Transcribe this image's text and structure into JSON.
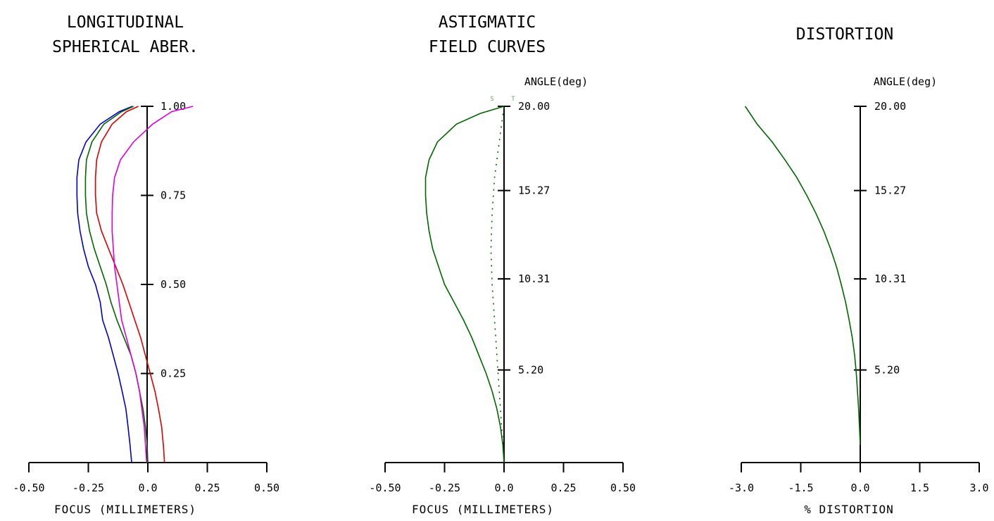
{
  "chart_data": [
    {
      "id": "lsa",
      "type": "line",
      "title": [
        "LONGITUDINAL",
        "SPHERICAL ABER."
      ],
      "xlabel": "FOCUS (MILLIMETERS)",
      "xlim": [
        -0.5,
        0.5
      ],
      "x_ticks": [
        "-0.50",
        "-0.25",
        "0.0",
        "0.25",
        "0.50"
      ],
      "ylim": [
        0,
        1.0
      ],
      "y_ticks": [
        {
          "v": 0.25,
          "label": "0.25"
        },
        {
          "v": 0.5,
          "label": "0.50"
        },
        {
          "v": 0.75,
          "label": "0.75"
        },
        {
          "v": 1.0,
          "label": "1.00"
        }
      ],
      "series": [
        {
          "color": "#0000cc",
          "points": [
            [
              -0.068,
              0
            ],
            [
              -0.075,
              0.05
            ],
            [
              -0.083,
              0.1
            ],
            [
              -0.092,
              0.15
            ],
            [
              -0.108,
              0.2
            ],
            [
              -0.125,
              0.25
            ],
            [
              -0.145,
              0.3
            ],
            [
              -0.165,
              0.35
            ],
            [
              -0.19,
              0.4
            ],
            [
              -0.2,
              0.45
            ],
            [
              -0.22,
              0.5
            ],
            [
              -0.25,
              0.55
            ],
            [
              -0.27,
              0.6
            ],
            [
              -0.285,
              0.65
            ],
            [
              -0.295,
              0.7
            ],
            [
              -0.298,
              0.75
            ],
            [
              -0.298,
              0.8
            ],
            [
              -0.29,
              0.85
            ],
            [
              -0.26,
              0.9
            ],
            [
              -0.2,
              0.95
            ],
            [
              -0.12,
              0.985
            ],
            [
              -0.065,
              1.0
            ]
          ]
        },
        {
          "color": "#006600",
          "points": [
            [
              0.0,
              0
            ],
            [
              -0.003,
              0.05
            ],
            [
              -0.01,
              0.1
            ],
            [
              -0.02,
              0.15
            ],
            [
              -0.035,
              0.2
            ],
            [
              -0.05,
              0.25
            ],
            [
              -0.07,
              0.3
            ],
            [
              -0.1,
              0.35
            ],
            [
              -0.13,
              0.4
            ],
            [
              -0.155,
              0.45
            ],
            [
              -0.175,
              0.5
            ],
            [
              -0.2,
              0.55
            ],
            [
              -0.225,
              0.6
            ],
            [
              -0.245,
              0.65
            ],
            [
              -0.258,
              0.7
            ],
            [
              -0.262,
              0.75
            ],
            [
              -0.262,
              0.8
            ],
            [
              -0.258,
              0.85
            ],
            [
              -0.235,
              0.9
            ],
            [
              -0.185,
              0.95
            ],
            [
              -0.11,
              0.985
            ],
            [
              -0.06,
              1.0
            ]
          ]
        },
        {
          "color": "#dd0000",
          "points": [
            [
              0.07,
              0
            ],
            [
              0.065,
              0.05
            ],
            [
              0.058,
              0.1
            ],
            [
              0.045,
              0.15
            ],
            [
              0.03,
              0.2
            ],
            [
              0.01,
              0.25
            ],
            [
              -0.01,
              0.3
            ],
            [
              -0.03,
              0.35
            ],
            [
              -0.055,
              0.4
            ],
            [
              -0.08,
              0.45
            ],
            [
              -0.105,
              0.5
            ],
            [
              -0.135,
              0.55
            ],
            [
              -0.165,
              0.6
            ],
            [
              -0.195,
              0.65
            ],
            [
              -0.215,
              0.7
            ],
            [
              -0.22,
              0.75
            ],
            [
              -0.22,
              0.8
            ],
            [
              -0.215,
              0.85
            ],
            [
              -0.195,
              0.9
            ],
            [
              -0.15,
              0.95
            ],
            [
              -0.09,
              0.985
            ],
            [
              -0.04,
              1.0
            ]
          ]
        },
        {
          "color": "#dd00dd",
          "points": [
            [
              -0.005,
              0
            ],
            [
              -0.01,
              0.05
            ],
            [
              -0.015,
              0.1
            ],
            [
              -0.025,
              0.15
            ],
            [
              -0.035,
              0.2
            ],
            [
              -0.05,
              0.25
            ],
            [
              -0.07,
              0.3
            ],
            [
              -0.09,
              0.35
            ],
            [
              -0.11,
              0.4
            ],
            [
              -0.12,
              0.45
            ],
            [
              -0.13,
              0.5
            ],
            [
              -0.14,
              0.55
            ],
            [
              -0.145,
              0.6
            ],
            [
              -0.15,
              0.65
            ],
            [
              -0.15,
              0.7
            ],
            [
              -0.148,
              0.75
            ],
            [
              -0.14,
              0.8
            ],
            [
              -0.115,
              0.85
            ],
            [
              -0.06,
              0.9
            ],
            [
              0.02,
              0.95
            ],
            [
              0.1,
              0.985
            ],
            [
              0.19,
              1.0
            ]
          ]
        }
      ]
    },
    {
      "id": "astig",
      "type": "line",
      "title": [
        "ASTIGMATIC",
        "FIELD CURVES"
      ],
      "xlabel": "FOCUS (MILLIMETERS)",
      "ylabel": "ANGLE(deg)",
      "xlim": [
        -0.5,
        0.5
      ],
      "x_ticks": [
        "-0.50",
        "-0.25",
        "0.0",
        "0.25",
        "0.50"
      ],
      "ylim": [
        0,
        20.0
      ],
      "y_ticks": [
        {
          "v": 5.2,
          "label": "5.20"
        },
        {
          "v": 10.31,
          "label": "10.31"
        },
        {
          "v": 15.27,
          "label": "15.27"
        },
        {
          "v": 20.0,
          "label": "20.00"
        }
      ],
      "legend": [
        "S",
        "T"
      ],
      "series": [
        {
          "name": "T",
          "color": "#006600",
          "dash": "",
          "points": [
            [
              0.0,
              0
            ],
            [
              -0.005,
              1
            ],
            [
              -0.015,
              2
            ],
            [
              -0.03,
              3
            ],
            [
              -0.05,
              4
            ],
            [
              -0.075,
              5
            ],
            [
              -0.105,
              6
            ],
            [
              -0.135,
              7
            ],
            [
              -0.17,
              8
            ],
            [
              -0.21,
              9
            ],
            [
              -0.25,
              10
            ],
            [
              -0.275,
              11
            ],
            [
              -0.3,
              12
            ],
            [
              -0.315,
              13
            ],
            [
              -0.325,
              14
            ],
            [
              -0.33,
              15
            ],
            [
              -0.33,
              16
            ],
            [
              -0.315,
              17
            ],
            [
              -0.28,
              18
            ],
            [
              -0.2,
              19
            ],
            [
              -0.1,
              19.6
            ],
            [
              0.0,
              20.0
            ]
          ]
        },
        {
          "name": "S",
          "color": "#006600",
          "dash": "2,7",
          "points": [
            [
              0.0,
              0
            ],
            [
              -0.01,
              2
            ],
            [
              -0.02,
              4
            ],
            [
              -0.03,
              6
            ],
            [
              -0.04,
              8
            ],
            [
              -0.05,
              10
            ],
            [
              -0.055,
              12
            ],
            [
              -0.05,
              14
            ],
            [
              -0.04,
              16
            ],
            [
              -0.02,
              18
            ],
            [
              0.0,
              20.0
            ]
          ]
        }
      ]
    },
    {
      "id": "dist",
      "type": "line",
      "title": [
        "DISTORTION"
      ],
      "xlabel": "% DISTORTION",
      "ylabel": "ANGLE(deg)",
      "xlim": [
        -3.0,
        3.0
      ],
      "x_ticks": [
        "-3.0",
        "-1.5",
        "0.0",
        "1.5",
        "3.0"
      ],
      "ylim": [
        0,
        20.0
      ],
      "y_ticks": [
        {
          "v": 5.2,
          "label": "5.20"
        },
        {
          "v": 10.31,
          "label": "10.31"
        },
        {
          "v": 15.27,
          "label": "15.27"
        },
        {
          "v": 20.0,
          "label": "20.00"
        }
      ],
      "series": [
        {
          "color": "#006600",
          "points": [
            [
              0.0,
              1.0
            ],
            [
              -0.02,
              2
            ],
            [
              -0.04,
              3
            ],
            [
              -0.07,
              4
            ],
            [
              -0.1,
              5
            ],
            [
              -0.14,
              6
            ],
            [
              -0.2,
              7
            ],
            [
              -0.28,
              8
            ],
            [
              -0.37,
              9
            ],
            [
              -0.48,
              10
            ],
            [
              -0.6,
              11
            ],
            [
              -0.75,
              12
            ],
            [
              -0.92,
              13
            ],
            [
              -1.12,
              14
            ],
            [
              -1.35,
              15
            ],
            [
              -1.6,
              16
            ],
            [
              -1.9,
              17
            ],
            [
              -2.22,
              18
            ],
            [
              -2.6,
              19
            ],
            [
              -2.9,
              20.0
            ]
          ]
        }
      ]
    }
  ]
}
